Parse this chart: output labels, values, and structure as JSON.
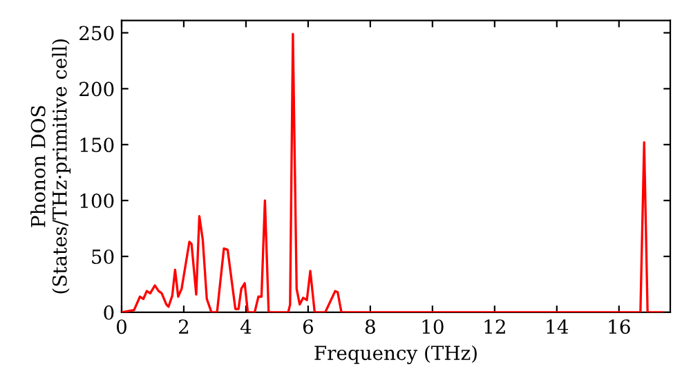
{
  "chart_data": {
    "type": "line",
    "xlabel": "Frequency (THz)",
    "ylabel": "Phonon DOS\n(States/THz·primitive cell)",
    "x": [
      0,
      0.4,
      0.59,
      0.7,
      0.81,
      0.92,
      1.07,
      1.19,
      1.29,
      1.44,
      1.51,
      1.63,
      1.72,
      1.82,
      1.93,
      2.18,
      2.25,
      2.4,
      2.5,
      2.61,
      2.74,
      2.89,
      3.07,
      3.29,
      3.41,
      3.66,
      3.76,
      3.85,
      3.96,
      4.06,
      4.28,
      4.4,
      4.5,
      4.61,
      4.73,
      5.36,
      5.42,
      5.51,
      5.63,
      5.73,
      5.84,
      5.96,
      6.07,
      6.21,
      6.55,
      6.87,
      6.95,
      7.07,
      16.69,
      16.81,
      16.92,
      17.4
    ],
    "series": [
      {
        "color": "#ff0000",
        "values": [
          0,
          2,
          14,
          12,
          19,
          17,
          24,
          19,
          17,
          7,
          5,
          15,
          38,
          14,
          21,
          63,
          61,
          16,
          86,
          65,
          12,
          0,
          0,
          57,
          56,
          3,
          3,
          21,
          26,
          0,
          0,
          14,
          14,
          100,
          0,
          0,
          7,
          249,
          21,
          7,
          13,
          11,
          37,
          0,
          0,
          19,
          18,
          0,
          0,
          152,
          0,
          0
        ]
      }
    ],
    "xlim": [
      0,
      17.65
    ],
    "ylim": [
      0,
      261
    ],
    "xticks": [
      0,
      2,
      4,
      6,
      8,
      10,
      12,
      14,
      16
    ],
    "yticks": [
      0,
      50,
      100,
      150,
      200,
      250
    ],
    "grid": false
  }
}
